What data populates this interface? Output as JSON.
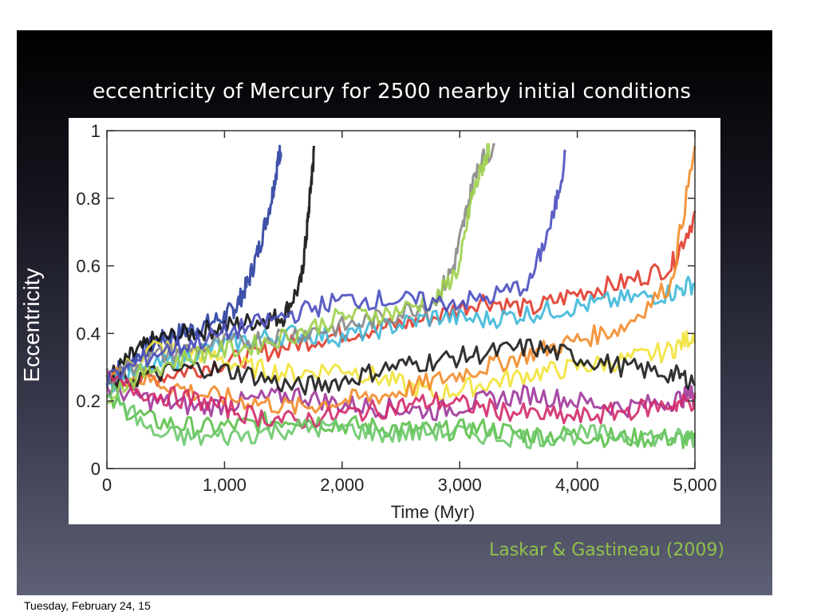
{
  "slide": {
    "title": "eccentricity of Mercury for 2500 nearby initial conditions",
    "side_label": "Eccentricity",
    "credit": "Laskar & Gastineau (2009)",
    "footer_date": "Tuesday, February 24, 15",
    "credit_color": "#8fc24a"
  },
  "chart_data": {
    "type": "line",
    "title": "",
    "xlabel": "Time (Myr)",
    "ylabel": "",
    "xlim": [
      0,
      5000
    ],
    "ylim": [
      0,
      1
    ],
    "xticks": [
      {
        "value": 0,
        "label": "0"
      },
      {
        "value": 1000,
        "label": "1,000"
      },
      {
        "value": 2000,
        "label": "2,000"
      },
      {
        "value": 3000,
        "label": "3,000"
      },
      {
        "value": 4000,
        "label": "4,000"
      },
      {
        "value": 5000,
        "label": "5,000"
      }
    ],
    "yticks": [
      {
        "value": 0,
        "label": "0"
      },
      {
        "value": 0.2,
        "label": "0.2"
      },
      {
        "value": 0.4,
        "label": "0.4"
      },
      {
        "value": 0.6,
        "label": "0.6"
      },
      {
        "value": 0.8,
        "label": "0.8"
      },
      {
        "value": 1,
        "label": "1"
      }
    ],
    "grid": false,
    "legend": "none",
    "series": [
      {
        "color": "#2a3fa0",
        "x": [
          0,
          200,
          400,
          600,
          800,
          1000,
          1100,
          1200,
          1300,
          1400,
          1450,
          1480
        ],
        "y": [
          0.27,
          0.32,
          0.37,
          0.4,
          0.42,
          0.45,
          0.48,
          0.55,
          0.66,
          0.8,
          0.9,
          0.95
        ]
      },
      {
        "color": "#111111",
        "x": [
          0,
          200,
          400,
          700,
          1000,
          1300,
          1500,
          1650,
          1700,
          1740,
          1760
        ],
        "y": [
          0.26,
          0.33,
          0.38,
          0.4,
          0.42,
          0.44,
          0.45,
          0.55,
          0.7,
          0.86,
          0.93
        ]
      },
      {
        "color": "#e03a2a",
        "x": [
          0,
          400,
          800,
          1200,
          1600,
          2000,
          2400,
          2800,
          3200,
          3600,
          4000,
          4400,
          4800,
          5000
        ],
        "y": [
          0.25,
          0.27,
          0.3,
          0.33,
          0.37,
          0.4,
          0.42,
          0.45,
          0.5,
          0.47,
          0.52,
          0.55,
          0.6,
          0.75
        ]
      },
      {
        "color": "#5cc04a",
        "x": [
          0,
          400,
          800,
          1200,
          1600,
          2000,
          2400,
          2800,
          3200,
          3600,
          4000,
          4400,
          4800,
          5000
        ],
        "y": [
          0.2,
          0.14,
          0.12,
          0.13,
          0.15,
          0.13,
          0.12,
          0.11,
          0.12,
          0.1,
          0.1,
          0.09,
          0.09,
          0.08
        ]
      },
      {
        "color": "#f2e23a",
        "x": [
          0,
          400,
          800,
          1200,
          1600,
          2000,
          2400,
          2800,
          3200,
          3600,
          4000,
          4400,
          4800,
          5000
        ],
        "y": [
          0.26,
          0.36,
          0.34,
          0.3,
          0.28,
          0.3,
          0.26,
          0.22,
          0.25,
          0.28,
          0.3,
          0.32,
          0.35,
          0.4
        ]
      },
      {
        "color": "#3fb8d8",
        "x": [
          0,
          400,
          800,
          1200,
          1600,
          2000,
          2400,
          2800,
          3200,
          3600,
          4000,
          4400,
          4800,
          5000
        ],
        "y": [
          0.25,
          0.3,
          0.35,
          0.38,
          0.4,
          0.39,
          0.42,
          0.45,
          0.44,
          0.46,
          0.48,
          0.5,
          0.52,
          0.55
        ]
      },
      {
        "color": "#a0379a",
        "x": [
          0,
          400,
          800,
          1200,
          1600,
          2000,
          2400,
          2800,
          3200,
          3600,
          4000,
          4400,
          4800,
          5000
        ],
        "y": [
          0.24,
          0.2,
          0.18,
          0.2,
          0.22,
          0.19,
          0.18,
          0.17,
          0.2,
          0.22,
          0.2,
          0.18,
          0.2,
          0.22
        ]
      },
      {
        "color": "#f28c2a",
        "x": [
          0,
          400,
          800,
          1200,
          1600,
          2000,
          2400,
          2800,
          3200,
          3600,
          4000,
          4400,
          4800,
          5000
        ],
        "y": [
          0.28,
          0.26,
          0.22,
          0.2,
          0.18,
          0.2,
          0.22,
          0.26,
          0.3,
          0.34,
          0.38,
          0.42,
          0.55,
          0.95
        ]
      },
      {
        "color": "#1c1c1c",
        "x": [
          0,
          400,
          800,
          1200,
          1600,
          2000,
          2400,
          2800,
          3200,
          3600,
          4000,
          4400,
          4800,
          5000
        ],
        "y": [
          0.25,
          0.28,
          0.3,
          0.28,
          0.24,
          0.26,
          0.3,
          0.32,
          0.34,
          0.36,
          0.33,
          0.3,
          0.28,
          0.26
        ]
      },
      {
        "color": "#888888",
        "x": [
          0,
          400,
          800,
          1200,
          1600,
          2000,
          2400,
          2800,
          2950,
          3050,
          3150,
          3300
        ],
        "y": [
          0.27,
          0.33,
          0.36,
          0.38,
          0.4,
          0.42,
          0.45,
          0.5,
          0.6,
          0.75,
          0.9,
          0.95
        ]
      },
      {
        "color": "#9ed04a",
        "x": [
          0,
          400,
          800,
          1200,
          1600,
          2000,
          2400,
          2800,
          3000,
          3100,
          3200,
          3250
        ],
        "y": [
          0.22,
          0.3,
          0.34,
          0.36,
          0.4,
          0.45,
          0.46,
          0.5,
          0.6,
          0.8,
          0.9,
          0.95
        ]
      },
      {
        "color": "#d22a6a",
        "x": [
          0,
          400,
          800,
          1200,
          1600,
          2000,
          2400,
          2800,
          3200,
          3600,
          4000,
          4400,
          4800,
          5000
        ],
        "y": [
          0.26,
          0.22,
          0.2,
          0.16,
          0.14,
          0.16,
          0.18,
          0.2,
          0.18,
          0.16,
          0.15,
          0.17,
          0.19,
          0.2
        ]
      },
      {
        "color": "#4a4fc0",
        "x": [
          0,
          400,
          800,
          1200,
          1600,
          2000,
          2400,
          2800,
          3200,
          3600,
          3800,
          3900
        ],
        "y": [
          0.26,
          0.34,
          0.38,
          0.42,
          0.46,
          0.5,
          0.5,
          0.49,
          0.5,
          0.55,
          0.75,
          0.93
        ]
      },
      {
        "color": "#6bc86b",
        "x": [
          0,
          400,
          800,
          1200,
          1600,
          2000,
          2400,
          2800,
          3200,
          3600,
          4000,
          4400,
          4800,
          5000
        ],
        "y": [
          0.24,
          0.1,
          0.09,
          0.1,
          0.12,
          0.12,
          0.1,
          0.11,
          0.1,
          0.09,
          0.1,
          0.1,
          0.09,
          0.09
        ]
      }
    ]
  }
}
